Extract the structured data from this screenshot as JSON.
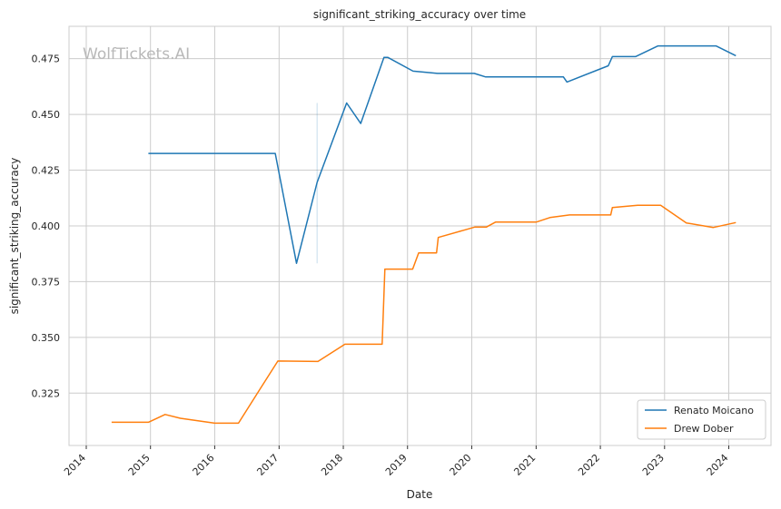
{
  "chart_data": {
    "type": "line",
    "title": "significant_striking_accuracy over time",
    "xlabel": "Date",
    "ylabel": "significant_striking_accuracy",
    "watermark": "WolfTickets.AI",
    "xlim": [
      "2013-09-25",
      "2024-08-28"
    ],
    "ylim": [
      0.3015,
      0.4895
    ],
    "x_ticks": [
      "2014",
      "2015",
      "2016",
      "2017",
      "2018",
      "2019",
      "2020",
      "2021",
      "2022",
      "2023",
      "2024"
    ],
    "y_ticks": [
      "0.325",
      "0.350",
      "0.375",
      "0.400",
      "0.425",
      "0.450",
      "0.475"
    ],
    "grid": true,
    "legend_position": "lower-right",
    "series": [
      {
        "name": "Renato Moicano",
        "color": "#1f77b4",
        "points": [
          [
            "2014-12-20",
            0.4325
          ],
          [
            "2016-12-10",
            0.4325
          ],
          [
            "2017-04-10",
            0.3832
          ],
          [
            "2017-08-05",
            0.4195
          ],
          [
            "2018-01-20",
            0.4551
          ],
          [
            "2018-04-10",
            0.4459
          ],
          [
            "2018-08-20",
            0.4756
          ],
          [
            "2018-09-10",
            0.4756
          ],
          [
            "2019-02-01",
            0.4694
          ],
          [
            "2019-06-20",
            0.4684
          ],
          [
            "2020-01-15",
            0.4684
          ],
          [
            "2020-03-20",
            0.4668
          ],
          [
            "2021-06-05",
            0.4668
          ],
          [
            "2021-06-25",
            0.4645
          ],
          [
            "2022-02-15",
            0.4718
          ],
          [
            "2022-03-10",
            0.4759
          ],
          [
            "2022-07-20",
            0.4759
          ],
          [
            "2022-11-25",
            0.4807
          ],
          [
            "2023-10-20",
            0.4807
          ],
          [
            "2024-02-10",
            0.4763
          ]
        ]
      },
      {
        "name": "Drew Dober",
        "color": "#ff7f0e",
        "points": [
          [
            "2014-05-25",
            0.3119
          ],
          [
            "2014-12-20",
            0.3119
          ],
          [
            "2015-03-25",
            0.3154
          ],
          [
            "2015-06-20",
            0.3137
          ],
          [
            "2016-01-01",
            0.3115
          ],
          [
            "2016-05-15",
            0.3115
          ],
          [
            "2016-09-20",
            0.3275
          ],
          [
            "2016-12-25",
            0.3394
          ],
          [
            "2017-08-10",
            0.3392
          ],
          [
            "2018-01-10",
            0.3469
          ],
          [
            "2018-08-10",
            0.3469
          ],
          [
            "2018-08-25",
            0.3806
          ],
          [
            "2019-01-30",
            0.3806
          ],
          [
            "2019-03-05",
            0.3879
          ],
          [
            "2019-06-15",
            0.3879
          ],
          [
            "2019-06-25",
            0.3948
          ],
          [
            "2020-01-20",
            0.3995
          ],
          [
            "2020-03-25",
            0.3995
          ],
          [
            "2020-05-15",
            0.4017
          ],
          [
            "2021-01-01",
            0.4017
          ],
          [
            "2021-03-20",
            0.4037
          ],
          [
            "2021-07-10",
            0.4049
          ],
          [
            "2022-03-01",
            0.4049
          ],
          [
            "2022-03-10",
            0.4082
          ],
          [
            "2022-08-01",
            0.4092
          ],
          [
            "2022-12-10",
            0.4092
          ],
          [
            "2023-05-05",
            0.4013
          ],
          [
            "2023-10-05",
            0.3993
          ],
          [
            "2024-02-10",
            0.4015
          ]
        ]
      }
    ],
    "annotations": [
      {
        "type": "vertical-line",
        "x": "2017-08-05",
        "y0": 0.3832,
        "y1": 0.4551,
        "color": "#1f77b4",
        "opacity": 0.25
      }
    ]
  }
}
